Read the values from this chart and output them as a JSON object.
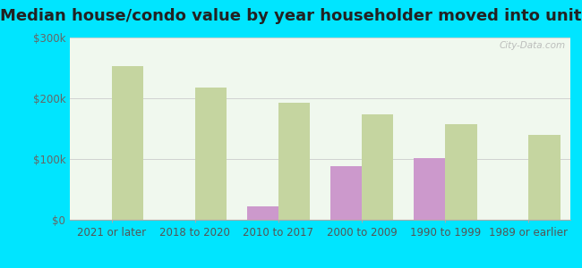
{
  "title": "Median house/condo value by year householder moved into unit",
  "categories": [
    "2021 or later",
    "2018 to 2020",
    "2010 to 2017",
    "2000 to 2009",
    "1990 to 1999",
    "1989 or earlier"
  ],
  "york_values": [
    null,
    null,
    22000,
    88000,
    102000,
    null
  ],
  "alabama_values": [
    253000,
    218000,
    193000,
    173000,
    158000,
    140000
  ],
  "york_color": "#cc99cc",
  "alabama_color": "#c5d5a0",
  "background_outer": "#00e5ff",
  "background_inner_top": "#e8f5e0",
  "background_inner_bottom": "#f8fff8",
  "ylim": [
    0,
    300000
  ],
  "yticks": [
    0,
    100000,
    200000,
    300000
  ],
  "ytick_labels": [
    "$0",
    "$100k",
    "$200k",
    "$300k"
  ],
  "bar_width": 0.38,
  "grid_color": "#cccccc",
  "title_fontsize": 13,
  "tick_fontsize": 8.5,
  "legend_fontsize": 10,
  "watermark_text": "City-Data.com"
}
